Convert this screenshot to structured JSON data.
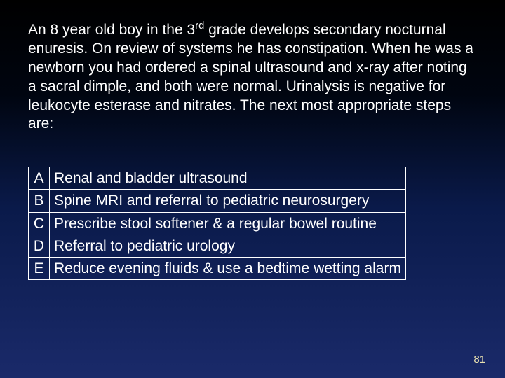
{
  "question": {
    "html": "An 8 year old boy in the 3<sup>rd</sup> grade develops secondary nocturnal enuresis.  On review of systems he has constipation.  When he was a newborn you had ordered a spinal ultrasound and x-ray after noting a sacral dimple, and both were normal.  Urinalysis is negative for leukocyte esterase and nitrates.  The next most appropriate steps are:"
  },
  "answers": [
    {
      "letter": "A",
      "text": "Renal and bladder ultrasound"
    },
    {
      "letter": "B",
      "text": "Spine MRI and referral to pediatric neurosurgery"
    },
    {
      "letter": "C",
      "text": "Prescribe stool softener & a regular bowel routine"
    },
    {
      "letter": "D",
      "text": "Referral to pediatric urology"
    },
    {
      "letter": "E",
      "text": "Reduce evening fluids & use a bedtime wetting alarm"
    }
  ],
  "page_number": "81",
  "style": {
    "background_gradient_top": "#000000",
    "background_gradient_bottom": "#1a2a6a",
    "text_color": "#ffffff",
    "border_color": "#ffffff",
    "page_number_color": "#e8e0b0",
    "font_size_body": 21,
    "font_size_page_number": 15
  }
}
